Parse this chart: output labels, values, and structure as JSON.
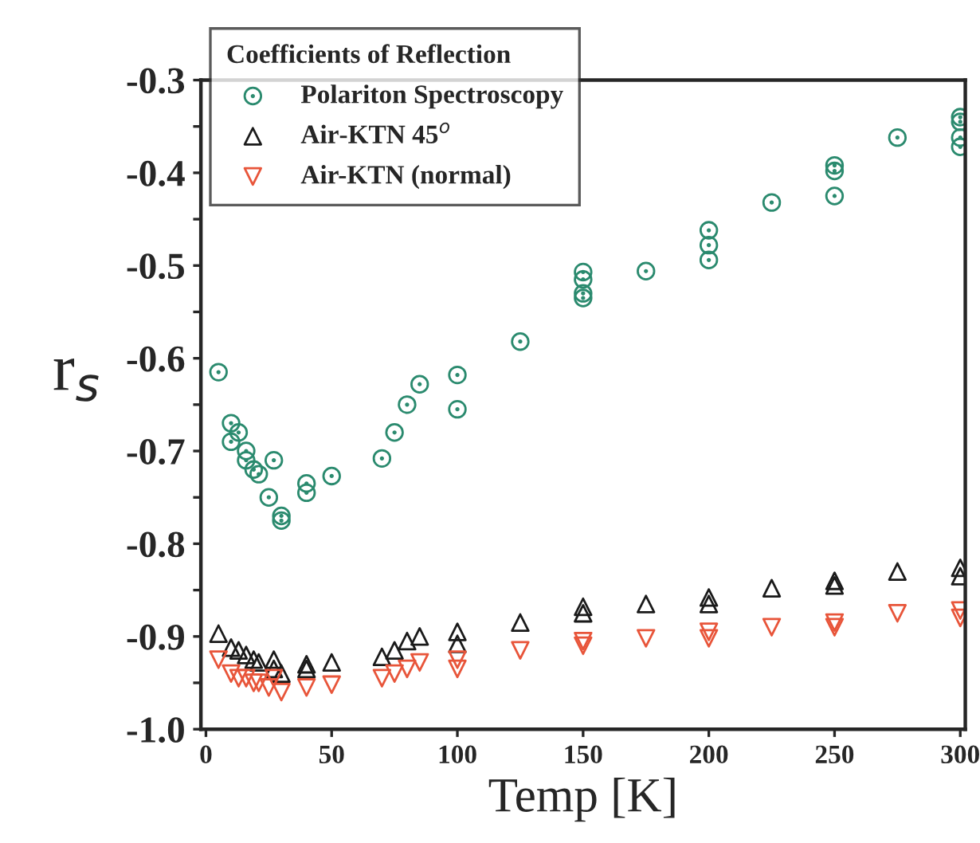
{
  "chart_data": {
    "type": "scatter",
    "xlabel": "Temp [K]",
    "ylabel": "r$_{s}$",
    "legend_title": "Coefficients of Reflection",
    "legend": "top left",
    "grid": false,
    "xlim": [
      -2,
      302
    ],
    "xticks": [
      0,
      50,
      100,
      150,
      200,
      250,
      300
    ],
    "ylim": [
      -1.0,
      -0.3
    ],
    "yticks": [
      {
        "value": -1.0,
        "label": "-1.0"
      },
      {
        "value": -0.95,
        "label": null
      },
      {
        "value": -0.9,
        "label": "-0.9"
      },
      {
        "value": -0.85,
        "label": null
      },
      {
        "value": -0.8,
        "label": "-0.8"
      },
      {
        "value": -0.75,
        "label": null
      },
      {
        "value": -0.7,
        "label": "-0.7"
      },
      {
        "value": -0.65,
        "label": null
      },
      {
        "value": -0.6,
        "label": "-0.6"
      },
      {
        "value": -0.55,
        "label": null
      },
      {
        "value": -0.5,
        "label": "-0.5"
      },
      {
        "value": -0.45,
        "label": null
      },
      {
        "value": -0.4,
        "label": "-0.4"
      },
      {
        "value": -0.35,
        "label": null
      },
      {
        "value": -0.3,
        "label": "-0.3"
      }
    ],
    "series": [
      {
        "name": "Polariton Spectroscopy",
        "color": "#2a8a6e",
        "marker": "circle",
        "x": [
          5,
          10,
          10,
          13,
          16,
          16,
          19,
          21,
          25,
          27,
          30,
          30,
          40,
          40,
          50,
          70,
          75,
          80,
          85,
          100,
          100,
          125,
          150,
          150,
          150,
          150,
          175,
          200,
          200,
          200,
          225,
          250,
          250,
          250,
          275,
          300,
          300,
          300,
          300
        ],
        "values": [
          -0.615,
          -0.67,
          -0.69,
          -0.68,
          -0.7,
          -0.71,
          -0.72,
          -0.725,
          -0.75,
          -0.71,
          -0.77,
          -0.775,
          -0.735,
          -0.745,
          -0.727,
          -0.708,
          -0.68,
          -0.65,
          -0.628,
          -0.618,
          -0.655,
          -0.582,
          -0.507,
          -0.515,
          -0.53,
          -0.535,
          -0.506,
          -0.462,
          -0.478,
          -0.494,
          -0.432,
          -0.392,
          -0.398,
          -0.425,
          -0.362,
          -0.34,
          -0.345,
          -0.362,
          -0.372
        ]
      },
      {
        "name": "Air-KTN 45$^{o}$",
        "color": "#1a1a1a",
        "marker": "triangle",
        "x": [
          5,
          10,
          13,
          16,
          19,
          21,
          27,
          27,
          30,
          40,
          40,
          50,
          70,
          75,
          80,
          85,
          100,
          100,
          125,
          150,
          150,
          175,
          200,
          200,
          225,
          250,
          250,
          275,
          300,
          300
        ],
        "values": [
          -0.897,
          -0.912,
          -0.915,
          -0.92,
          -0.925,
          -0.928,
          -0.925,
          -0.935,
          -0.94,
          -0.93,
          -0.935,
          -0.928,
          -0.922,
          -0.915,
          -0.905,
          -0.9,
          -0.895,
          -0.908,
          -0.885,
          -0.868,
          -0.875,
          -0.865,
          -0.858,
          -0.865,
          -0.848,
          -0.84,
          -0.845,
          -0.83,
          -0.826,
          -0.835
        ]
      },
      {
        "name": "Air-KTN (normal)",
        "color": "#e8553a",
        "marker": "triangle_down",
        "x": [
          5,
          10,
          13,
          16,
          19,
          21,
          25,
          27,
          30,
          40,
          50,
          70,
          75,
          80,
          85,
          100,
          100,
          125,
          150,
          150,
          175,
          200,
          200,
          225,
          250,
          250,
          275,
          300,
          300
        ],
        "values": [
          -0.925,
          -0.94,
          -0.945,
          -0.945,
          -0.95,
          -0.95,
          -0.955,
          -0.945,
          -0.96,
          -0.955,
          -0.952,
          -0.945,
          -0.94,
          -0.935,
          -0.928,
          -0.925,
          -0.935,
          -0.915,
          -0.905,
          -0.91,
          -0.902,
          -0.895,
          -0.902,
          -0.89,
          -0.885,
          -0.89,
          -0.875,
          -0.872,
          -0.88
        ]
      }
    ]
  }
}
